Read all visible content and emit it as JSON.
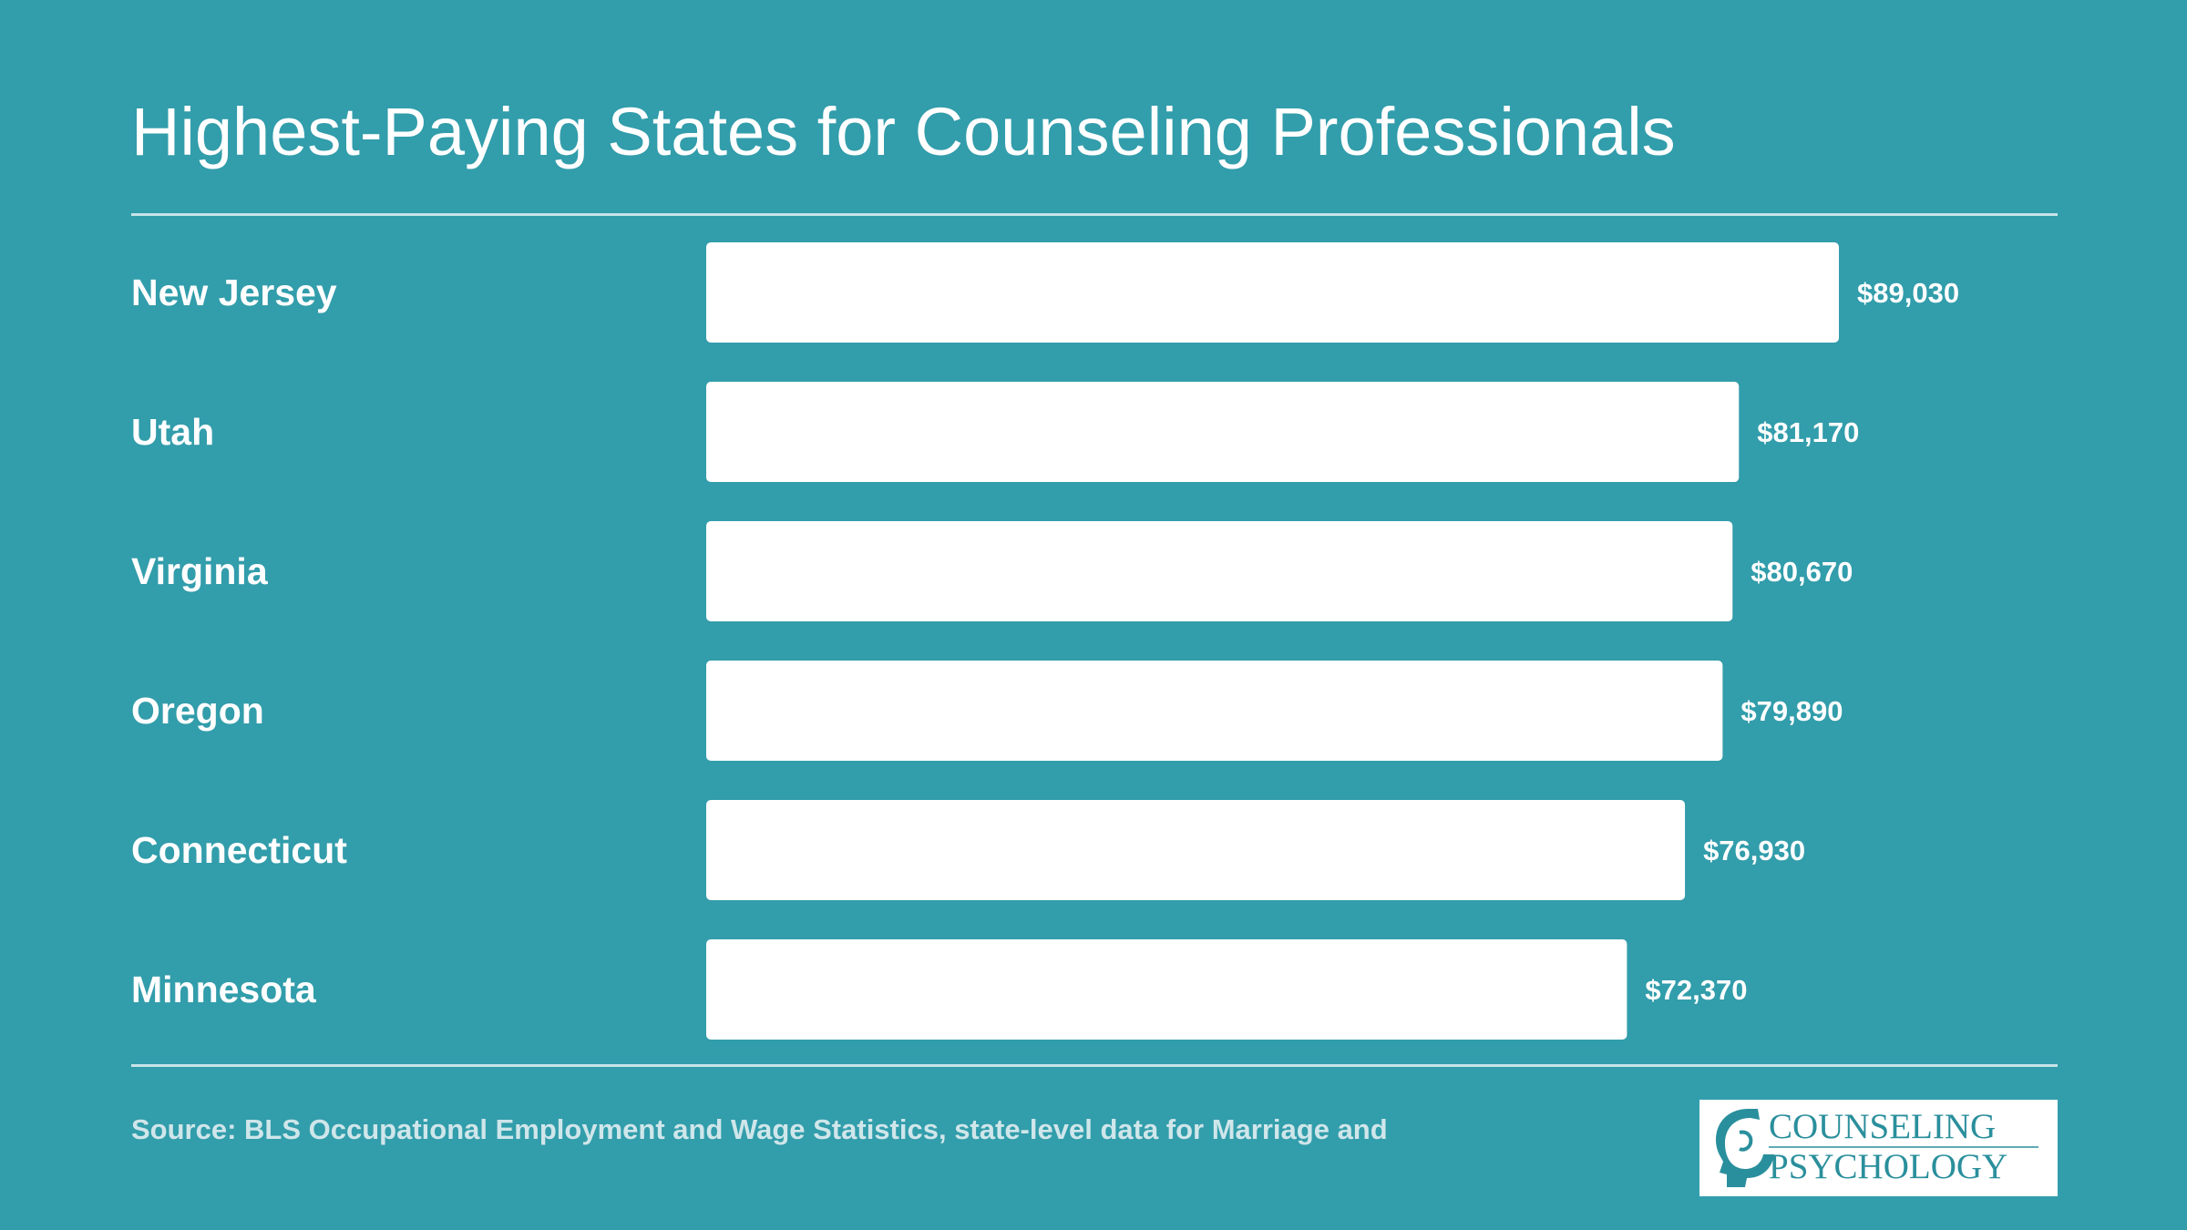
{
  "chart_data": {
    "type": "bar",
    "orientation": "horizontal",
    "title": "Highest-Paying States for Counseling Professionals",
    "categories": [
      "New Jersey",
      "Utah",
      "Virginia",
      "Oregon",
      "Connecticut",
      "Minnesota"
    ],
    "values": [
      89030,
      81170,
      80670,
      79890,
      76930,
      72370
    ],
    "value_labels": [
      "$89,030",
      "$81,170",
      "$80,670",
      "$79,890",
      "$76,930",
      "$72,370"
    ],
    "xlabel": "",
    "ylabel": "",
    "xlim": [
      0,
      89030
    ],
    "grid": false,
    "legend": "none",
    "colors": {
      "background": "#329dab",
      "bar": "#ffffff",
      "text": "#ffffff",
      "source": "#cfe6ea",
      "logo_teal": "#2a8f9c"
    }
  },
  "footer": {
    "source": "Source: BLS Occupational Employment and Wage Statistics, state-level data for Marriage and"
  },
  "logo": {
    "line1": "COUNSELING",
    "line2": "PSYCHOLOGY",
    "icon": "head-profile-icon"
  }
}
